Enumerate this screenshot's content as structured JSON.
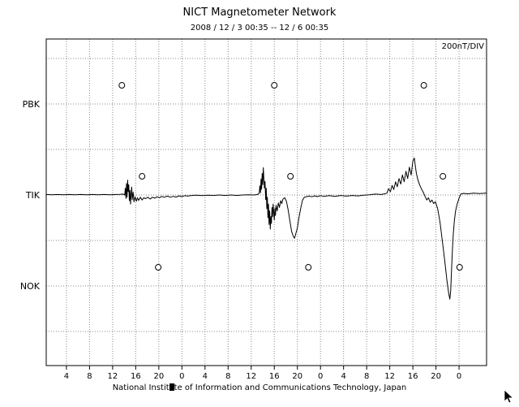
{
  "chart_data": {
    "type": "line",
    "title": "NICT Magnetometer Network",
    "subtitle": "2008 / 12 / 3  00:35 -- 12 / 6  00:35",
    "scale_label": "200nT/DIV",
    "footer": "National Institute of Information and Communications Technology, Japan",
    "footer_parts": [
      "National Instit",
      "te of Information and Communications Technology, Japan"
    ],
    "x_tick_labels": [
      "4",
      "8",
      "12",
      "16",
      "20",
      "0",
      "4",
      "8",
      "12",
      "16",
      "20",
      "0",
      "4",
      "8",
      "12",
      "16",
      "20",
      "0"
    ],
    "x_tick_hours": [
      3.5,
      7.5,
      11.5,
      15.5,
      19.5,
      23.5,
      27.5,
      31.5,
      35.5,
      39.5,
      43.5,
      47.5,
      51.5,
      55.5,
      59.5,
      63.5,
      67.5,
      71.5
    ],
    "x_axis_unit": "hours (UT), x=0 at start of interval",
    "x_range_hours": [
      0,
      76.3
    ],
    "nT_per_division": 200,
    "y_range_nT": [
      -750,
      686
    ],
    "y_gridlines_nT": [
      600,
      400,
      200,
      0,
      -200,
      -400,
      -600
    ],
    "grid": true,
    "stations": [
      {
        "label": "PBK",
        "baseline_nT": 400
      },
      {
        "label": "TIK",
        "baseline_nT": 0
      },
      {
        "label": "NOK",
        "baseline_nT": -400
      }
    ],
    "noon_markers": {
      "offset_nT": 82,
      "points": [
        {
          "station": "PBK",
          "hour": 13.1
        },
        {
          "station": "PBK",
          "hour": 39.5
        },
        {
          "station": "PBK",
          "hour": 65.4
        },
        {
          "station": "TIK",
          "hour": 16.6
        },
        {
          "station": "TIK",
          "hour": 42.3
        },
        {
          "station": "TIK",
          "hour": 68.7
        },
        {
          "station": "NOK",
          "hour": 19.4
        },
        {
          "station": "NOK",
          "hour": 45.4
        },
        {
          "station": "NOK",
          "hour": 71.6
        }
      ]
    },
    "series": [
      {
        "name": "TIK",
        "baseline_nT": 0,
        "points_hour_nT": [
          [
            0,
            2
          ],
          [
            1,
            1
          ],
          [
            2,
            2
          ],
          [
            3,
            1
          ],
          [
            4,
            2
          ],
          [
            5,
            1
          ],
          [
            6,
            2
          ],
          [
            7,
            1
          ],
          [
            8,
            2
          ],
          [
            9,
            1
          ],
          [
            10,
            2
          ],
          [
            11,
            1
          ],
          [
            12,
            2
          ],
          [
            12.8,
            3
          ],
          [
            13.3,
            4
          ],
          [
            13.6,
            0
          ],
          [
            13.7,
            30
          ],
          [
            13.8,
            -15
          ],
          [
            13.9,
            50
          ],
          [
            14.0,
            -10
          ],
          [
            14.1,
            65
          ],
          [
            14.2,
            15
          ],
          [
            14.3,
            45
          ],
          [
            14.4,
            -25
          ],
          [
            14.5,
            20
          ],
          [
            14.6,
            -40
          ],
          [
            14.7,
            5
          ],
          [
            14.8,
            35
          ],
          [
            14.9,
            -20
          ],
          [
            15.05,
            12
          ],
          [
            15.2,
            -30
          ],
          [
            15.4,
            -8
          ],
          [
            15.6,
            -28
          ],
          [
            15.8,
            -12
          ],
          [
            16.0,
            -24
          ],
          [
            16.3,
            -10
          ],
          [
            16.6,
            -22
          ],
          [
            16.9,
            -12
          ],
          [
            17.2,
            -16
          ],
          [
            17.6,
            -10
          ],
          [
            18.0,
            -18
          ],
          [
            18.4,
            -10
          ],
          [
            18.8,
            -14
          ],
          [
            19.2,
            -8
          ],
          [
            19.6,
            -12
          ],
          [
            20.0,
            -6
          ],
          [
            20.4,
            -10
          ],
          [
            21.0,
            -5
          ],
          [
            21.5,
            -10
          ],
          [
            22.0,
            -6
          ],
          [
            22.5,
            -9
          ],
          [
            23.0,
            -4
          ],
          [
            23.5,
            -7
          ],
          [
            24.0,
            -3
          ],
          [
            24.5,
            -5
          ],
          [
            25,
            -3
          ],
          [
            26,
            -1
          ],
          [
            27,
            -3
          ],
          [
            28,
            -1
          ],
          [
            29,
            -2
          ],
          [
            30,
            0
          ],
          [
            31,
            -2
          ],
          [
            32,
            0
          ],
          [
            33,
            -2
          ],
          [
            34,
            0
          ],
          [
            35,
            1
          ],
          [
            36,
            0
          ],
          [
            36.6,
            2
          ],
          [
            36.9,
            8
          ],
          [
            37.0,
            40
          ],
          [
            37.1,
            10
          ],
          [
            37.2,
            70
          ],
          [
            37.3,
            25
          ],
          [
            37.4,
            95
          ],
          [
            37.5,
            45
          ],
          [
            37.6,
            120
          ],
          [
            37.7,
            70
          ],
          [
            37.8,
            30
          ],
          [
            37.9,
            60
          ],
          [
            38.0,
            -20
          ],
          [
            38.1,
            30
          ],
          [
            38.2,
            -60
          ],
          [
            38.3,
            -10
          ],
          [
            38.4,
            -100
          ],
          [
            38.5,
            -40
          ],
          [
            38.6,
            -130
          ],
          [
            38.7,
            -70
          ],
          [
            38.8,
            -150
          ],
          [
            38.9,
            -95
          ],
          [
            39.0,
            -125
          ],
          [
            39.1,
            -55
          ],
          [
            39.2,
            -95
          ],
          [
            39.3,
            -40
          ],
          [
            39.4,
            -75
          ],
          [
            39.5,
            -110
          ],
          [
            39.6,
            -60
          ],
          [
            39.7,
            -90
          ],
          [
            39.8,
            -45
          ],
          [
            40.0,
            -70
          ],
          [
            40.2,
            -35
          ],
          [
            40.4,
            -55
          ],
          [
            40.6,
            -25
          ],
          [
            40.8,
            -38
          ],
          [
            41.0,
            -18
          ],
          [
            41.3,
            -12
          ],
          [
            41.6,
            -28
          ],
          [
            41.9,
            -65
          ],
          [
            42.2,
            -115
          ],
          [
            42.5,
            -160
          ],
          [
            42.8,
            -182
          ],
          [
            43.0,
            -190
          ],
          [
            43.2,
            -172
          ],
          [
            43.5,
            -145
          ],
          [
            43.8,
            -95
          ],
          [
            44.1,
            -55
          ],
          [
            44.4,
            -22
          ],
          [
            44.7,
            -10
          ],
          [
            45.0,
            -8
          ],
          [
            45.5,
            -5
          ],
          [
            46,
            -8
          ],
          [
            46.5,
            -4
          ],
          [
            47,
            -7
          ],
          [
            47.5,
            -3
          ],
          [
            48,
            -6
          ],
          [
            49,
            -3
          ],
          [
            50,
            -6
          ],
          [
            51,
            -2
          ],
          [
            52,
            -5
          ],
          [
            53,
            -2
          ],
          [
            54,
            -4
          ],
          [
            55,
            -1
          ],
          [
            56,
            1
          ],
          [
            57,
            4
          ],
          [
            58,
            2
          ],
          [
            58.6,
            5
          ],
          [
            59.0,
            8
          ],
          [
            59.3,
            28
          ],
          [
            59.6,
            14
          ],
          [
            59.9,
            42
          ],
          [
            60.2,
            24
          ],
          [
            60.5,
            58
          ],
          [
            60.8,
            36
          ],
          [
            61.1,
            72
          ],
          [
            61.4,
            48
          ],
          [
            61.7,
            88
          ],
          [
            62.0,
            58
          ],
          [
            62.3,
            104
          ],
          [
            62.6,
            72
          ],
          [
            62.9,
            122
          ],
          [
            63.2,
            88
          ],
          [
            63.5,
            148
          ],
          [
            63.75,
            162
          ],
          [
            63.9,
            132
          ],
          [
            64.1,
            96
          ],
          [
            64.4,
            64
          ],
          [
            64.7,
            42
          ],
          [
            65.0,
            26
          ],
          [
            65.3,
            12
          ],
          [
            65.6,
            -6
          ],
          [
            65.9,
            -22
          ],
          [
            66.2,
            -12
          ],
          [
            66.5,
            -32
          ],
          [
            66.8,
            -22
          ],
          [
            67.1,
            -38
          ],
          [
            67.4,
            -30
          ],
          [
            67.8,
            -60
          ],
          [
            68.2,
            -120
          ],
          [
            68.6,
            -200
          ],
          [
            69.0,
            -285
          ],
          [
            69.4,
            -375
          ],
          [
            69.7,
            -432
          ],
          [
            69.9,
            -458
          ],
          [
            70.05,
            -420
          ],
          [
            70.2,
            -330
          ],
          [
            70.35,
            -240
          ],
          [
            70.5,
            -170
          ],
          [
            70.7,
            -110
          ],
          [
            70.9,
            -70
          ],
          [
            71.2,
            -38
          ],
          [
            71.5,
            -14
          ],
          [
            71.8,
            4
          ],
          [
            72.3,
            7
          ],
          [
            73,
            5
          ],
          [
            74,
            8
          ],
          [
            75,
            6
          ],
          [
            76.2,
            8
          ]
        ]
      }
    ],
    "colors": {
      "trace": "#000000",
      "grid": "#888888",
      "border": "#000000"
    }
  }
}
